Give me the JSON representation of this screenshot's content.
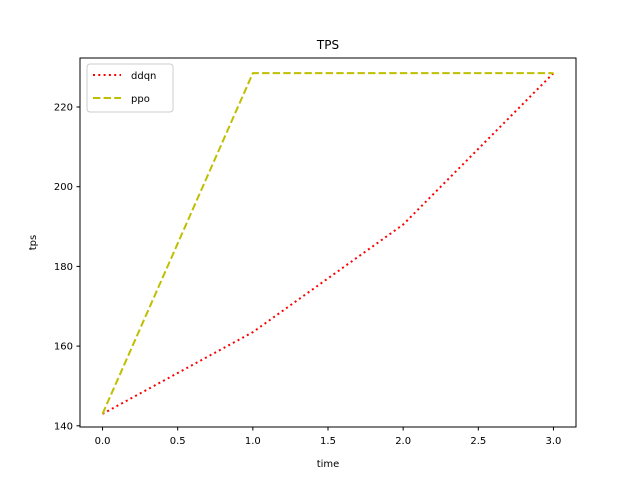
{
  "chart_data": {
    "type": "line",
    "title": "TPS",
    "xlabel": "time",
    "ylabel": "tps",
    "xlim": [
      -0.15,
      3.15
    ],
    "ylim": [
      139.7,
      232.3
    ],
    "xticks": [
      0.0,
      0.5,
      1.0,
      1.5,
      2.0,
      2.5,
      3.0
    ],
    "xtick_labels": [
      "0.0",
      "0.5",
      "1.0",
      "1.5",
      "2.0",
      "2.5",
      "3.0"
    ],
    "yticks": [
      140,
      160,
      180,
      200,
      220
    ],
    "ytick_labels": [
      "140",
      "160",
      "180",
      "200",
      "220"
    ],
    "grid": false,
    "legend_position": "upper-left",
    "series": [
      {
        "name": "ddqn",
        "color": "#ff0000",
        "style": "dotted",
        "x": [
          0,
          1,
          2,
          3
        ],
        "y": [
          143.0,
          163.5,
          190.5,
          228.5
        ]
      },
      {
        "name": "ppo",
        "color": "#bfbf00",
        "style": "dashed",
        "x": [
          0,
          1,
          2,
          3
        ],
        "y": [
          143.0,
          228.5,
          228.5,
          228.5
        ]
      }
    ]
  }
}
